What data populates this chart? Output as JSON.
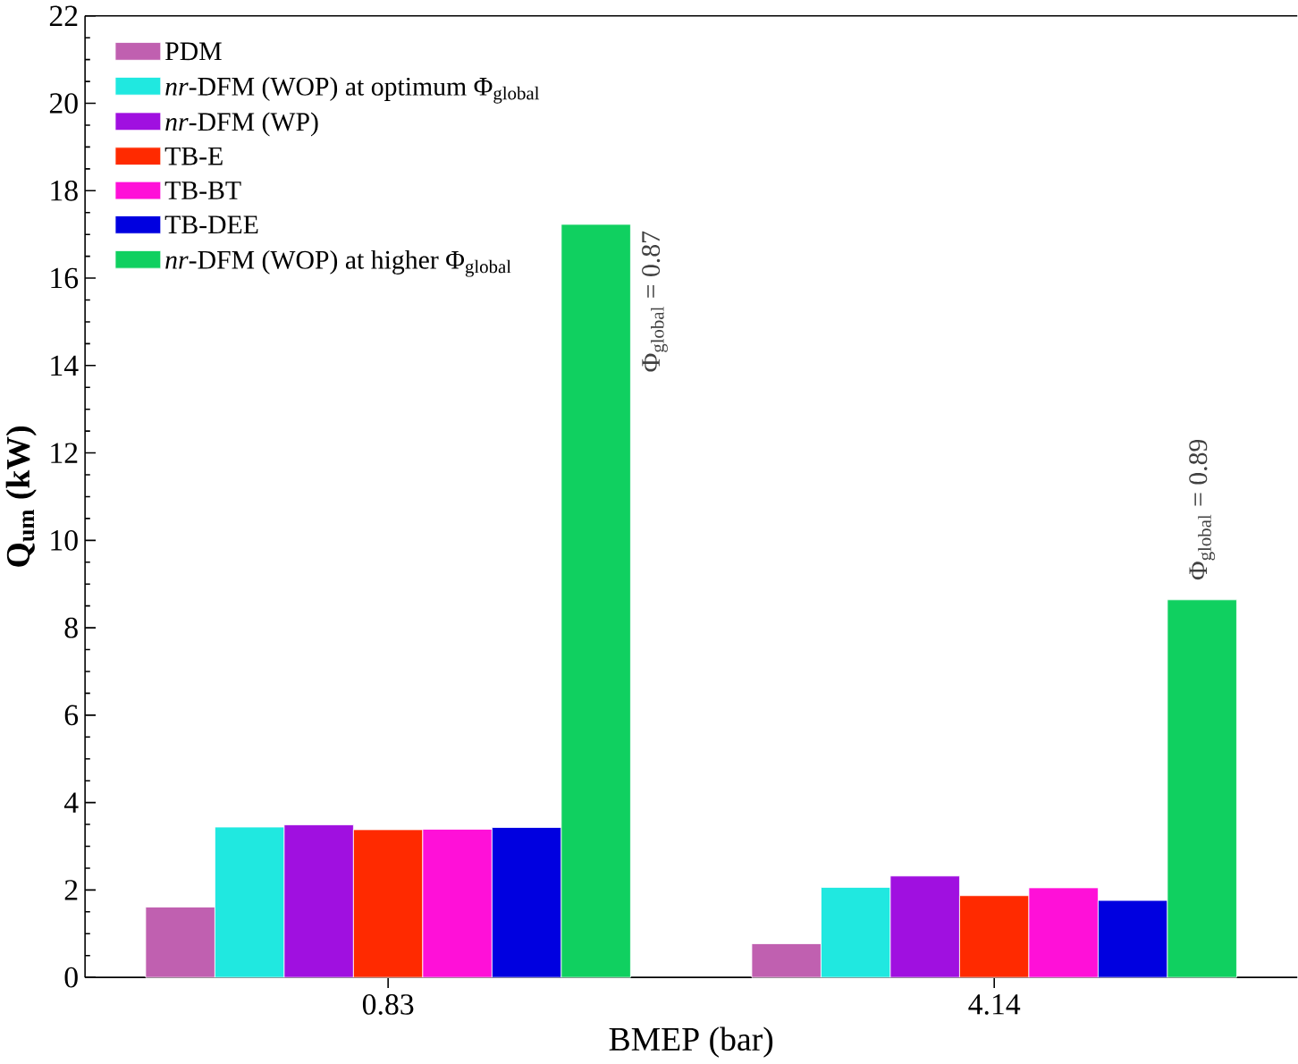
{
  "chart_data": {
    "type": "bar",
    "xlabel": "BMEP (bar)",
    "ylabel": "**Q$_{um}$ (kW)**",
    "categories": [
      "0.83",
      "4.14"
    ],
    "series": [
      {
        "name": "PDM",
        "color": "#c060b0",
        "values": [
          1.61,
          0.77
        ]
      },
      {
        "name": "*nr*-DFM (WOP) at optimum Φ$_{global}$",
        "color": "#20e8e0",
        "values": [
          3.44,
          2.06
        ]
      },
      {
        "name": "*nr*-DFM (WP)",
        "color": "#a010e0",
        "values": [
          3.49,
          2.32
        ]
      },
      {
        "name": "TB-E",
        "color": "#ff2a00",
        "values": [
          3.38,
          1.87
        ]
      },
      {
        "name": "TB-BT",
        "color": "#ff10d8",
        "values": [
          3.39,
          2.05
        ]
      },
      {
        "name": "TB-DEE",
        "color": "#0000e0",
        "values": [
          3.43,
          1.76
        ]
      },
      {
        "name": "*nr*-DFM (WOP) at higher Φ$_{global}$",
        "color": "#10d060",
        "values": [
          17.23,
          8.64
        ]
      }
    ],
    "ylim": [
      0,
      22
    ],
    "yticks": [
      0,
      2,
      4,
      6,
      8,
      10,
      12,
      14,
      16,
      18,
      20,
      22
    ],
    "legend": "top left",
    "annotations": [
      "Φ$_{global}$ = 0.87",
      "Φ$_{global}$ = 0.89"
    ]
  }
}
